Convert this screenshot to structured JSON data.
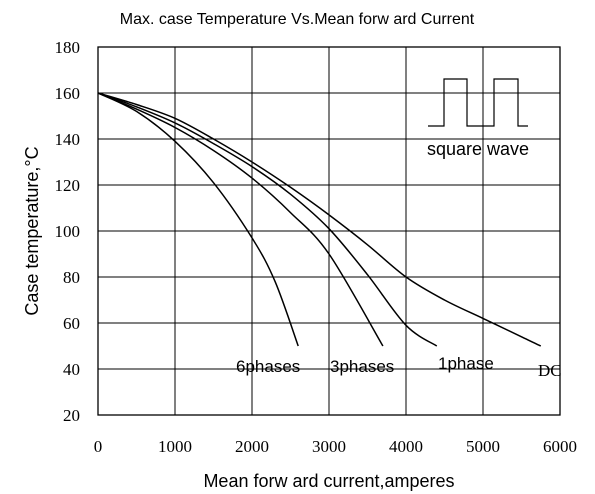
{
  "chart_data": {
    "type": "line",
    "title": "Max. case Temperature Vs.Mean forw ard Current",
    "xlabel": "Mean forw ard current,amperes",
    "ylabel": "Case  temperature,°C",
    "xlim": [
      0,
      6000
    ],
    "ylim": [
      20,
      180
    ],
    "x_ticks": [
      0,
      1000,
      2000,
      3000,
      4000,
      5000,
      6000
    ],
    "y_ticks": [
      20,
      40,
      60,
      80,
      100,
      120,
      140,
      160,
      180
    ],
    "x_tick_labels": [
      "0",
      "1000",
      "2000",
      "3000",
      "4000",
      "5000",
      "6000"
    ],
    "y_tick_labels": [
      "20",
      "40",
      "60",
      "80",
      "100",
      "120",
      "140",
      "160",
      "180"
    ],
    "grid": true,
    "series": [
      {
        "name": "6phases",
        "points": [
          [
            0,
            160
          ],
          [
            500,
            152
          ],
          [
            1000,
            139
          ],
          [
            1500,
            121
          ],
          [
            2000,
            97
          ],
          [
            2300,
            78
          ],
          [
            2600,
            50
          ]
        ]
      },
      {
        "name": "3phases",
        "points": [
          [
            0,
            160
          ],
          [
            500,
            153
          ],
          [
            1000,
            145
          ],
          [
            1500,
            135
          ],
          [
            2000,
            123
          ],
          [
            2500,
            108
          ],
          [
            3000,
            90
          ],
          [
            3700,
            50
          ]
        ]
      },
      {
        "name": "1phase",
        "points": [
          [
            0,
            160
          ],
          [
            500,
            154
          ],
          [
            1000,
            147
          ],
          [
            1500,
            138
          ],
          [
            2000,
            128
          ],
          [
            2500,
            116
          ],
          [
            3000,
            101
          ],
          [
            3500,
            81
          ],
          [
            4000,
            59
          ],
          [
            4400,
            50
          ]
        ]
      },
      {
        "name": "DC",
        "points": [
          [
            0,
            160
          ],
          [
            500,
            155
          ],
          [
            1000,
            149
          ],
          [
            1500,
            140
          ],
          [
            2000,
            130
          ],
          [
            2500,
            119
          ],
          [
            3000,
            107
          ],
          [
            3500,
            94
          ],
          [
            4000,
            80
          ],
          [
            4500,
            70
          ],
          [
            5000,
            62
          ],
          [
            5500,
            54
          ],
          [
            5750,
            50
          ]
        ]
      }
    ],
    "annotation": "square wave"
  }
}
